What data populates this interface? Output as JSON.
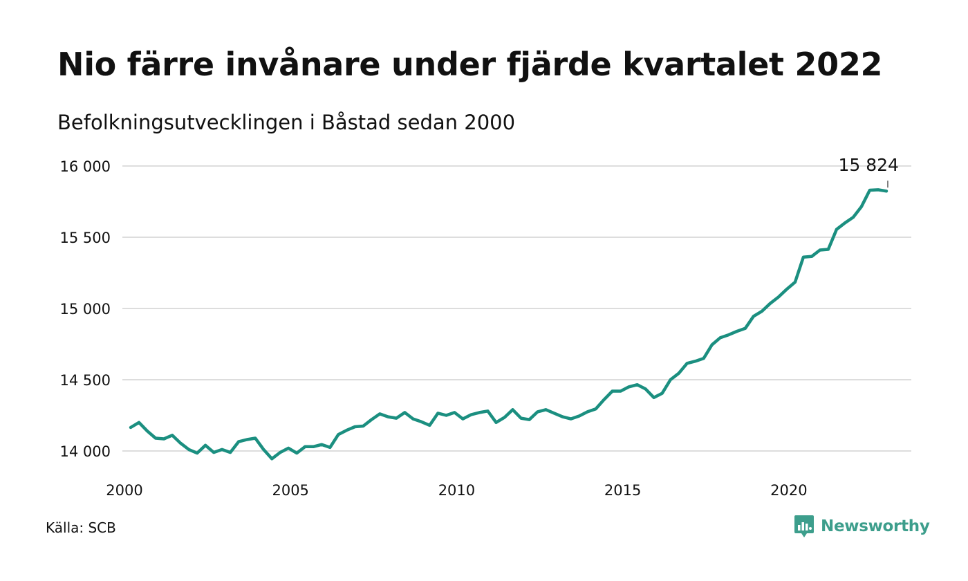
{
  "title": "Nio färre invånare under fjärde kvartalet 2022",
  "subtitle": "Befolkningsutvecklingen i Båstad sedan 2000",
  "source": "Källa: SCB",
  "brand": {
    "name": "Newsworthy",
    "icon": "newsworthy-logo-icon",
    "color": "#3d9e8c"
  },
  "colors": {
    "line": "#1b8f80",
    "grid": "#dddddd",
    "text": "#111111"
  },
  "chart_data": {
    "type": "line",
    "title": "Nio färre invånare under fjärde kvartalet 2022",
    "subtitle": "Befolkningsutvecklingen i Båstad sedan 2000",
    "xlabel": "",
    "ylabel": "",
    "xlim": [
      2000,
      2023.75
    ],
    "ylim": [
      13900,
      16050
    ],
    "grid": true,
    "legend": "none",
    "x_ticks": [
      {
        "value": 2000,
        "label": "2000"
      },
      {
        "value": 2005,
        "label": "2005"
      },
      {
        "value": 2010,
        "label": "2010"
      },
      {
        "value": 2015,
        "label": "2015"
      },
      {
        "value": 2020,
        "label": "2020"
      }
    ],
    "y_ticks": [
      {
        "value": 14000,
        "label": "14 000"
      },
      {
        "value": 14500,
        "label": "14 500"
      },
      {
        "value": 15000,
        "label": "15 000"
      },
      {
        "value": 15500,
        "label": "15 500"
      },
      {
        "value": 16000,
        "label": "16 000"
      }
    ],
    "annotation": {
      "x": 2023,
      "y": 15824,
      "label": "15 824"
    },
    "series": [
      {
        "x": [
          2000.25,
          2000.5,
          2000.75,
          2001,
          2001.25,
          2001.5,
          2001.75,
          2002,
          2002.25,
          2002.5,
          2002.75,
          2003,
          2003.25,
          2003.5,
          2003.75,
          2004,
          2004.25,
          2004.5,
          2004.75,
          2005,
          2005.25,
          2005.5,
          2005.75,
          2006,
          2006.25,
          2006.5,
          2006.75,
          2007,
          2007.25,
          2007.5,
          2007.75,
          2008,
          2008.25,
          2008.5,
          2008.75,
          2009,
          2009.25,
          2009.5,
          2009.75,
          2010,
          2010.25,
          2010.5,
          2010.75,
          2011,
          2011.25,
          2011.5,
          2011.75,
          2012,
          2012.25,
          2012.5,
          2012.75,
          2013,
          2013.25,
          2013.5,
          2013.75,
          2014,
          2014.25,
          2014.5,
          2014.75,
          2015,
          2015.25,
          2015.5,
          2015.75,
          2016,
          2016.25,
          2016.5,
          2016.75,
          2017,
          2017.25,
          2017.5,
          2017.75,
          2018,
          2018.25,
          2018.5,
          2018.75,
          2019,
          2019.25,
          2019.5,
          2019.75,
          2020,
          2020.25,
          2020.5,
          2020.75,
          2021,
          2021.25,
          2021.5,
          2021.75,
          2022,
          2022.25,
          2022.5,
          2022.75,
          2023
        ],
        "values": [
          14165,
          14200,
          14140,
          14090,
          14085,
          14110,
          14055,
          14010,
          13985,
          14040,
          13990,
          14010,
          13990,
          14065,
          14080,
          14090,
          14010,
          13945,
          13990,
          14020,
          13985,
          14030,
          14030,
          14045,
          14025,
          14115,
          14145,
          14170,
          14175,
          14220,
          14260,
          14240,
          14230,
          14270,
          14225,
          14205,
          14180,
          14265,
          14250,
          14270,
          14225,
          14255,
          14270,
          14280,
          14200,
          14235,
          14290,
          14230,
          14220,
          14275,
          14290,
          14265,
          14240,
          14225,
          14245,
          14275,
          14295,
          14360,
          14420,
          14420,
          14450,
          14465,
          14435,
          14375,
          14405,
          14500,
          14545,
          14615,
          14630,
          14650,
          14745,
          14795,
          14815,
          14840,
          14860,
          14945,
          14980,
          15035,
          15080,
          15135,
          15185,
          15360,
          15365,
          15410,
          15415,
          15555,
          15600,
          15640,
          15715,
          15830,
          15833,
          15824
        ]
      }
    ]
  }
}
